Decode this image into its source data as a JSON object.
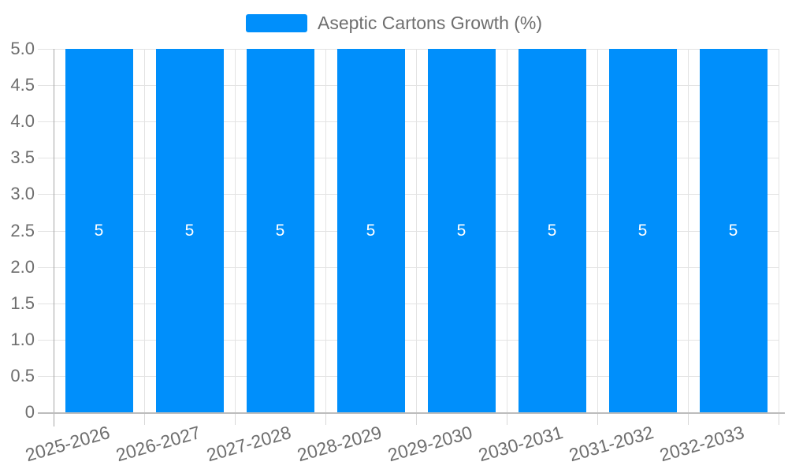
{
  "legend": {
    "label": "Aseptic Cartons Growth (%)"
  },
  "chart_data": {
    "type": "bar",
    "title": "",
    "xlabel": "",
    "ylabel": "",
    "categories": [
      "2025-2026",
      "2026-2027",
      "2027-2028",
      "2028-2029",
      "2029-2030",
      "2030-2031",
      "2031-2032",
      "2032-2033"
    ],
    "series": [
      {
        "name": "Aseptic Cartons Growth (%)",
        "values": [
          5,
          5,
          5,
          5,
          5,
          5,
          5,
          5
        ]
      }
    ],
    "data_labels": [
      "5",
      "5",
      "5",
      "5",
      "5",
      "5",
      "5",
      "5"
    ],
    "ylim": [
      0,
      5
    ],
    "ytick_step": 0.5,
    "ytick_labels_top_to_bottom": [
      "5.0",
      "4.5",
      "4.0",
      "3.5",
      "3.0",
      "2.5",
      "2.0",
      "1.5",
      "1.0",
      "0.5",
      "0"
    ],
    "grid": true,
    "legend_position": "top-center",
    "xlabel_rotation_deg": -16
  },
  "colors": {
    "bar": "#008FFB",
    "background": "#FFFFFF",
    "grid": "#E3E3E3",
    "axis": "#BCBCBC",
    "axis_strong": "#A6A6A6",
    "tick": "#D8D8D8",
    "label": "#6E6E6E",
    "data_label": "#FFFFFF"
  }
}
